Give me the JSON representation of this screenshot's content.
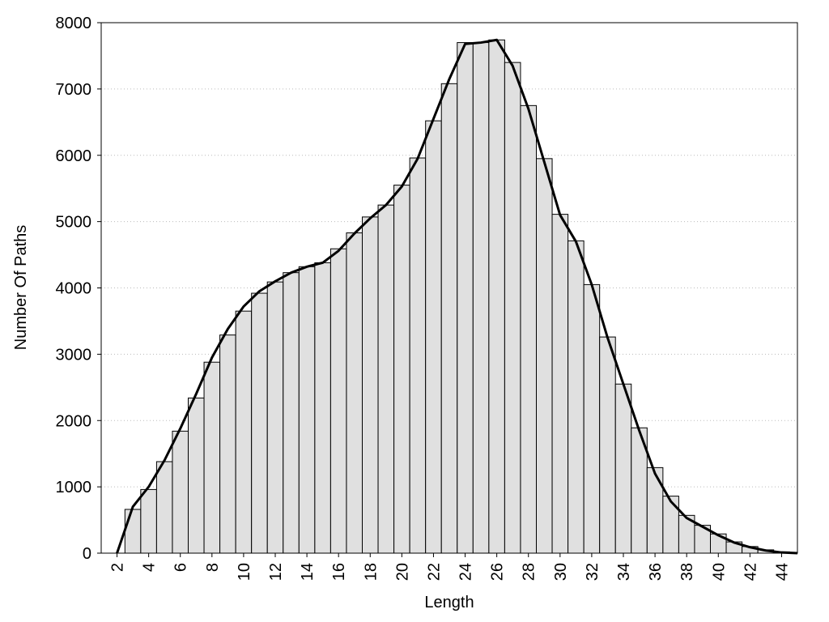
{
  "chart_data": {
    "type": "histogram",
    "x_label": "Length",
    "y_label": "Number Of Paths",
    "bins": [
      2.5,
      3.5,
      4.5,
      5.5,
      6.5,
      7.5,
      8.5,
      9.5,
      10.5,
      11.5,
      12.5,
      13.5,
      14.5,
      15.5,
      16.5,
      17.5,
      18.5,
      19.5,
      20.5,
      21.5,
      22.5,
      23.5,
      24.5,
      25.5,
      26.5,
      27.5,
      28.5,
      29.5,
      30.5,
      31.5,
      32.5,
      33.5,
      34.5,
      35.5,
      36.5,
      37.5,
      38.5,
      39.5,
      40.5,
      41.5,
      42.5,
      43.5,
      44.5
    ],
    "values": [
      660,
      960,
      1380,
      1840,
      2340,
      2880,
      3290,
      3650,
      3920,
      4090,
      4230,
      4320,
      4380,
      4590,
      4830,
      5070,
      5250,
      5550,
      5960,
      6520,
      7080,
      7700,
      7700,
      7740,
      7400,
      6750,
      5950,
      5110,
      4710,
      4050,
      3260,
      2550,
      1890,
      1290,
      860,
      570,
      420,
      290,
      170,
      100,
      50,
      20
    ],
    "color": "#e0e0e0",
    "curve": {
      "color": "#000000",
      "x": [
        2,
        3,
        4,
        5,
        6,
        7,
        8,
        9,
        10,
        11,
        12,
        13,
        14,
        15,
        16,
        17,
        18,
        19,
        20,
        21,
        22,
        23,
        24,
        25,
        26,
        27,
        28,
        29,
        30,
        31,
        32,
        33,
        34,
        35,
        36,
        37,
        38,
        39,
        40,
        41,
        42,
        43,
        44,
        45
      ],
      "y": [
        0,
        700,
        1000,
        1400,
        1880,
        2400,
        2950,
        3380,
        3720,
        3950,
        4100,
        4230,
        4320,
        4380,
        4560,
        4820,
        5050,
        5250,
        5530,
        5950,
        6550,
        7150,
        7680,
        7700,
        7740,
        7350,
        6700,
        5900,
        5100,
        4700,
        4050,
        3250,
        2550,
        1850,
        1200,
        780,
        530,
        400,
        270,
        160,
        90,
        40,
        10,
        0
      ]
    },
    "xlim": [
      1,
      45
    ],
    "ylim": [
      0,
      8000
    ],
    "xticks": [
      2,
      4,
      6,
      8,
      10,
      12,
      14,
      16,
      18,
      20,
      22,
      24,
      26,
      28,
      30,
      32,
      34,
      36,
      38,
      40,
      42,
      44
    ],
    "yticks": [
      0,
      1000,
      2000,
      3000,
      4000,
      5000,
      6000,
      7000,
      8000
    ],
    "grid": true
  }
}
